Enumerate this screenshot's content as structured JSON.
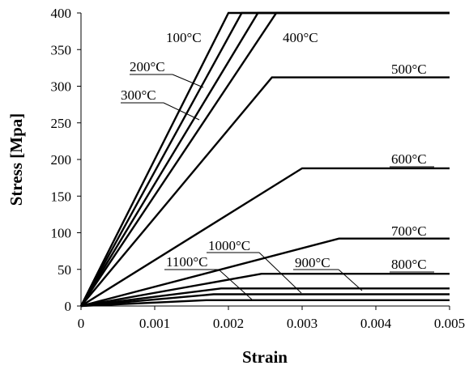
{
  "chart_data": {
    "type": "line",
    "xlabel": "Strain",
    "ylabel": "Stress [Mpa]",
    "xlim": [
      0,
      0.005
    ],
    "ylim": [
      0,
      400
    ],
    "xticks": [
      "0",
      "0.001",
      "0.002",
      "0.003",
      "0.004",
      "0.005"
    ],
    "yticks": [
      "0",
      "50",
      "100",
      "150",
      "200",
      "250",
      "300",
      "350",
      "400"
    ],
    "grid": false,
    "legend": "none",
    "series": [
      {
        "name": "100°C",
        "x": [
          0,
          0.002,
          0.005
        ],
        "y": [
          0,
          400,
          400
        ]
      },
      {
        "name": "200°C",
        "x": [
          0,
          0.00218,
          0.005
        ],
        "y": [
          0,
          400,
          400
        ]
      },
      {
        "name": "300°C",
        "x": [
          0,
          0.0024,
          0.005
        ],
        "y": [
          0,
          400,
          400
        ]
      },
      {
        "name": "400°C",
        "x": [
          0,
          0.00265,
          0.005
        ],
        "y": [
          0,
          400,
          400
        ]
      },
      {
        "name": "500°C",
        "x": [
          0,
          0.00259,
          0.005
        ],
        "y": [
          0,
          312,
          312
        ]
      },
      {
        "name": "600°C",
        "x": [
          0,
          0.003,
          0.005
        ],
        "y": [
          0,
          188,
          188
        ]
      },
      {
        "name": "700°C",
        "x": [
          0,
          0.0035,
          0.005
        ],
        "y": [
          0,
          92,
          92
        ]
      },
      {
        "name": "800°C",
        "x": [
          0,
          0.00245,
          0.005
        ],
        "y": [
          0,
          44,
          44
        ]
      },
      {
        "name": "900°C",
        "x": [
          0,
          0.0019,
          0.005
        ],
        "y": [
          0,
          24,
          24
        ]
      },
      {
        "name": "1000°C",
        "x": [
          0,
          0.0018,
          0.005
        ],
        "y": [
          0,
          16,
          16
        ]
      },
      {
        "name": "1100°C",
        "x": [
          0,
          0.0017,
          0.005
        ],
        "y": [
          0,
          8,
          8
        ]
      }
    ],
    "annotations": [
      {
        "series": 0,
        "text": "100°C",
        "underline": false,
        "leader": false
      },
      {
        "series": 1,
        "text": "200°C",
        "underline": true,
        "leader": true
      },
      {
        "series": 2,
        "text": "300°C",
        "underline": true,
        "leader": true
      },
      {
        "series": 3,
        "text": "400°C",
        "underline": false,
        "leader": false
      },
      {
        "series": 4,
        "text": "500°C",
        "underline": true,
        "leader": false
      },
      {
        "series": 5,
        "text": "600°C",
        "underline": true,
        "leader": false
      },
      {
        "series": 6,
        "text": "700°C",
        "underline": true,
        "leader": false
      },
      {
        "series": 7,
        "text": "800°C",
        "underline": true,
        "leader": false
      },
      {
        "series": 8,
        "text": "900°C",
        "underline": true,
        "leader": true
      },
      {
        "series": 9,
        "text": "1000°C",
        "underline": true,
        "leader": true
      },
      {
        "series": 10,
        "text": "1100°C",
        "underline": true,
        "leader": true
      }
    ]
  }
}
